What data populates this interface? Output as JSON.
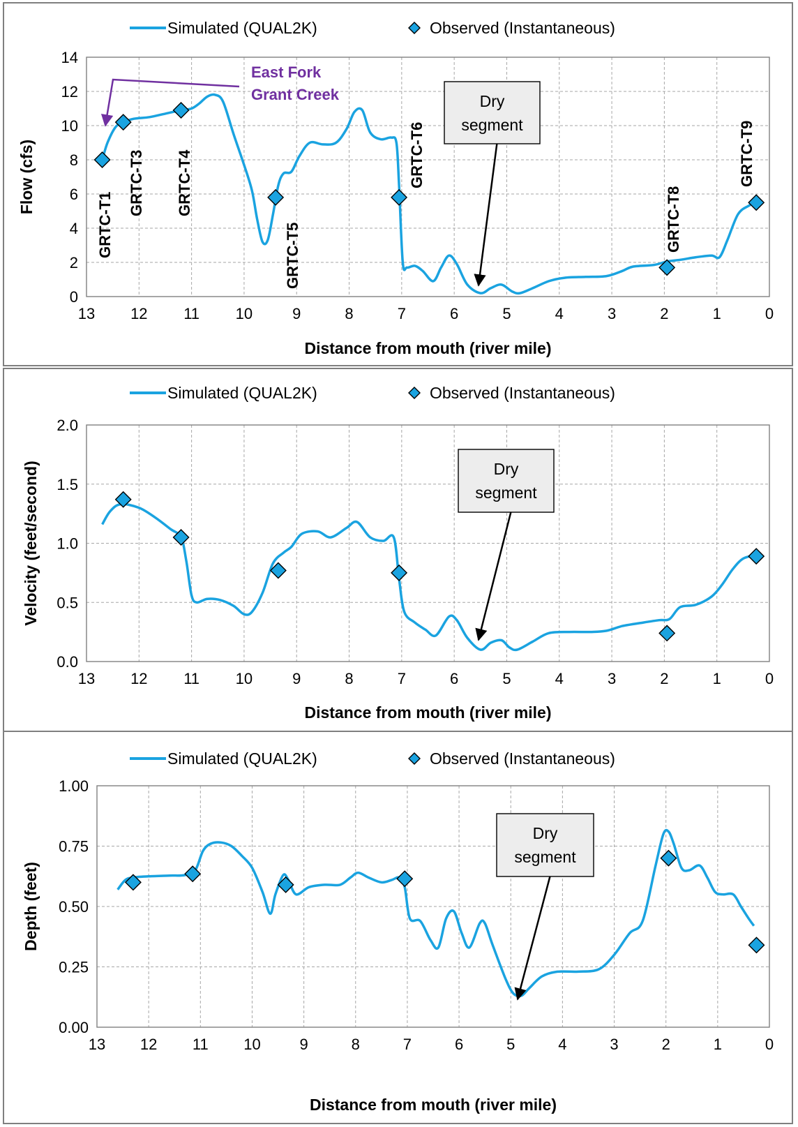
{
  "chart_data": [
    {
      "type": "line",
      "xlabel": "Distance from mouth (river mile)",
      "ylabel": "Flow (cfs)",
      "xlim": [
        13,
        0
      ],
      "ylim": [
        0,
        14
      ],
      "x_ticks": [
        13,
        12,
        11,
        10,
        9,
        8,
        7,
        6,
        5,
        4,
        3,
        2,
        1,
        0
      ],
      "y_ticks": [
        "0",
        "2",
        "4",
        "6",
        "8",
        "10",
        "12",
        "14"
      ],
      "grid": true,
      "legend": {
        "position": "top",
        "entries": [
          "Simulated (QUAL2K)",
          "Observed (Instantaneous)"
        ]
      },
      "series": [
        {
          "name": "Simulated (QUAL2K)",
          "kind": "line",
          "color": "#1aa3e0",
          "points": [
            [
              12.7,
              8.0
            ],
            [
              12.6,
              9.0
            ],
            [
              12.45,
              9.9
            ],
            [
              12.3,
              10.2
            ],
            [
              12.1,
              10.4
            ],
            [
              11.8,
              10.5
            ],
            [
              11.5,
              10.7
            ],
            [
              11.2,
              10.9
            ],
            [
              11.0,
              11.0
            ],
            [
              10.85,
              11.3
            ],
            [
              10.7,
              11.7
            ],
            [
              10.55,
              11.8
            ],
            [
              10.4,
              11.4
            ],
            [
              10.2,
              9.5
            ],
            [
              10.0,
              7.7
            ],
            [
              9.85,
              6.2
            ],
            [
              9.75,
              4.5
            ],
            [
              9.65,
              3.2
            ],
            [
              9.55,
              3.3
            ],
            [
              9.45,
              4.8
            ],
            [
              9.35,
              6.5
            ],
            [
              9.25,
              7.2
            ],
            [
              9.1,
              7.3
            ],
            [
              8.95,
              8.2
            ],
            [
              8.75,
              9.0
            ],
            [
              8.5,
              8.9
            ],
            [
              8.25,
              9.0
            ],
            [
              8.05,
              9.8
            ],
            [
              7.9,
              10.8
            ],
            [
              7.75,
              10.9
            ],
            [
              7.6,
              9.6
            ],
            [
              7.4,
              9.2
            ],
            [
              7.2,
              9.3
            ],
            [
              7.1,
              9.0
            ],
            [
              7.05,
              6.5
            ],
            [
              6.98,
              2.0
            ],
            [
              6.9,
              1.7
            ],
            [
              6.75,
              1.8
            ],
            [
              6.6,
              1.5
            ],
            [
              6.4,
              0.9
            ],
            [
              6.25,
              1.7
            ],
            [
              6.1,
              2.4
            ],
            [
              5.95,
              1.9
            ],
            [
              5.75,
              0.7
            ],
            [
              5.5,
              0.2
            ],
            [
              5.3,
              0.5
            ],
            [
              5.1,
              0.7
            ],
            [
              4.9,
              0.3
            ],
            [
              4.75,
              0.2
            ],
            [
              4.5,
              0.5
            ],
            [
              4.2,
              0.9
            ],
            [
              3.9,
              1.1
            ],
            [
              3.5,
              1.15
            ],
            [
              3.1,
              1.2
            ],
            [
              2.8,
              1.5
            ],
            [
              2.6,
              1.75
            ],
            [
              2.2,
              1.85
            ],
            [
              1.95,
              2.05
            ],
            [
              1.7,
              2.15
            ],
            [
              1.4,
              2.3
            ],
            [
              1.1,
              2.4
            ],
            [
              0.95,
              2.3
            ],
            [
              0.8,
              3.3
            ],
            [
              0.6,
              4.8
            ],
            [
              0.4,
              5.3
            ],
            [
              0.22,
              5.5
            ]
          ]
        },
        {
          "name": "Observed (Instantaneous)",
          "kind": "marker",
          "color": "#1aa3e0",
          "points": [
            [
              12.7,
              8.0
            ],
            [
              12.3,
              10.2
            ],
            [
              11.2,
              10.9
            ],
            [
              9.4,
              5.8
            ],
            [
              7.05,
              5.8
            ],
            [
              1.95,
              1.7
            ],
            [
              0.25,
              5.5
            ]
          ]
        }
      ],
      "annotations": {
        "station_labels": [
          "GRTC-T1",
          "GRTC-T3",
          "GRTC-T4",
          "GRTC-T5",
          "GRTC-T6",
          "GRTC-T8",
          "GRTC-T9"
        ],
        "tributary": {
          "line1": "East Fork",
          "line2": "Grant Creek",
          "color": "#7030a0"
        },
        "callout": {
          "line1": "Dry",
          "line2": "segment"
        }
      }
    },
    {
      "type": "line",
      "xlabel": "Distance from mouth (river mile)",
      "ylabel": "Velocity (feet/second)",
      "xlim": [
        13,
        0
      ],
      "ylim": [
        0,
        2
      ],
      "x_ticks": [
        13,
        12,
        11,
        10,
        9,
        8,
        7,
        6,
        5,
        4,
        3,
        2,
        1,
        0
      ],
      "y_ticks": [
        "0.0",
        "0.5",
        "1.0",
        "1.5",
        "2.0"
      ],
      "grid": true,
      "legend": {
        "position": "top",
        "entries": [
          "Simulated (QUAL2K)",
          "Observed (Instantaneous)"
        ]
      },
      "series": [
        {
          "name": "Simulated (QUAL2K)",
          "kind": "line",
          "color": "#1aa3e0",
          "points": [
            [
              12.7,
              1.16
            ],
            [
              12.55,
              1.27
            ],
            [
              12.35,
              1.33
            ],
            [
              12.0,
              1.3
            ],
            [
              11.7,
              1.22
            ],
            [
              11.4,
              1.12
            ],
            [
              11.2,
              1.05
            ],
            [
              11.1,
              0.85
            ],
            [
              11.0,
              0.56
            ],
            [
              10.9,
              0.5
            ],
            [
              10.7,
              0.53
            ],
            [
              10.45,
              0.52
            ],
            [
              10.2,
              0.47
            ],
            [
              10.0,
              0.4
            ],
            [
              9.85,
              0.42
            ],
            [
              9.65,
              0.58
            ],
            [
              9.45,
              0.83
            ],
            [
              9.25,
              0.92
            ],
            [
              9.1,
              0.97
            ],
            [
              8.9,
              1.08
            ],
            [
              8.6,
              1.1
            ],
            [
              8.35,
              1.05
            ],
            [
              8.05,
              1.13
            ],
            [
              7.85,
              1.18
            ],
            [
              7.6,
              1.05
            ],
            [
              7.35,
              1.02
            ],
            [
              7.15,
              1.05
            ],
            [
              7.05,
              0.7
            ],
            [
              6.95,
              0.42
            ],
            [
              6.75,
              0.33
            ],
            [
              6.55,
              0.27
            ],
            [
              6.35,
              0.22
            ],
            [
              6.1,
              0.38
            ],
            [
              5.95,
              0.35
            ],
            [
              5.75,
              0.2
            ],
            [
              5.5,
              0.1
            ],
            [
              5.3,
              0.16
            ],
            [
              5.1,
              0.18
            ],
            [
              4.95,
              0.12
            ],
            [
              4.8,
              0.1
            ],
            [
              4.5,
              0.17
            ],
            [
              4.2,
              0.24
            ],
            [
              3.8,
              0.25
            ],
            [
              3.4,
              0.25
            ],
            [
              3.1,
              0.26
            ],
            [
              2.8,
              0.3
            ],
            [
              2.4,
              0.33
            ],
            [
              2.1,
              0.35
            ],
            [
              1.9,
              0.36
            ],
            [
              1.7,
              0.46
            ],
            [
              1.4,
              0.48
            ],
            [
              1.1,
              0.55
            ],
            [
              0.9,
              0.65
            ],
            [
              0.7,
              0.78
            ],
            [
              0.5,
              0.87
            ],
            [
              0.25,
              0.9
            ]
          ]
        },
        {
          "name": "Observed (Instantaneous)",
          "kind": "marker",
          "color": "#1aa3e0",
          "points": [
            [
              12.3,
              1.37
            ],
            [
              11.2,
              1.05
            ],
            [
              9.35,
              0.77
            ],
            [
              7.05,
              0.75
            ],
            [
              1.95,
              0.24
            ],
            [
              0.25,
              0.89
            ]
          ]
        }
      ],
      "annotations": {
        "callout": {
          "line1": "Dry",
          "line2": "segment"
        }
      }
    },
    {
      "type": "line",
      "xlabel": "Distance from mouth (river mile)",
      "ylabel": "Depth (feet)",
      "xlim": [
        13,
        0
      ],
      "ylim": [
        0,
        1
      ],
      "x_ticks": [
        13,
        12,
        11,
        10,
        9,
        8,
        7,
        6,
        5,
        4,
        3,
        2,
        1,
        0
      ],
      "y_ticks": [
        "0.00",
        "0.25",
        "0.50",
        "0.75",
        "1.00"
      ],
      "grid": true,
      "legend": {
        "position": "top",
        "entries": [
          "Simulated (QUAL2K)",
          "Observed (Instantaneous)"
        ]
      },
      "series": [
        {
          "name": "Simulated (QUAL2K)",
          "kind": "line",
          "color": "#1aa3e0",
          "points": [
            [
              12.6,
              0.57
            ],
            [
              12.45,
              0.61
            ],
            [
              12.3,
              0.62
            ],
            [
              12.0,
              0.625
            ],
            [
              11.6,
              0.628
            ],
            [
              11.3,
              0.63
            ],
            [
              11.1,
              0.65
            ],
            [
              10.95,
              0.73
            ],
            [
              10.8,
              0.76
            ],
            [
              10.6,
              0.765
            ],
            [
              10.4,
              0.75
            ],
            [
              10.2,
              0.71
            ],
            [
              10.0,
              0.66
            ],
            [
              9.8,
              0.56
            ],
            [
              9.65,
              0.47
            ],
            [
              9.55,
              0.55
            ],
            [
              9.4,
              0.63
            ],
            [
              9.3,
              0.61
            ],
            [
              9.15,
              0.55
            ],
            [
              8.9,
              0.58
            ],
            [
              8.6,
              0.59
            ],
            [
              8.3,
              0.59
            ],
            [
              8.1,
              0.62
            ],
            [
              7.95,
              0.64
            ],
            [
              7.75,
              0.62
            ],
            [
              7.5,
              0.6
            ],
            [
              7.3,
              0.61
            ],
            [
              7.15,
              0.62
            ],
            [
              7.05,
              0.58
            ],
            [
              6.95,
              0.45
            ],
            [
              6.75,
              0.44
            ],
            [
              6.55,
              0.36
            ],
            [
              6.4,
              0.33
            ],
            [
              6.25,
              0.45
            ],
            [
              6.1,
              0.48
            ],
            [
              5.95,
              0.39
            ],
            [
              5.8,
              0.33
            ],
            [
              5.6,
              0.43
            ],
            [
              5.5,
              0.43
            ],
            [
              5.35,
              0.34
            ],
            [
              5.1,
              0.2
            ],
            [
              4.95,
              0.14
            ],
            [
              4.8,
              0.13
            ],
            [
              4.65,
              0.16
            ],
            [
              4.4,
              0.21
            ],
            [
              4.1,
              0.23
            ],
            [
              3.7,
              0.23
            ],
            [
              3.3,
              0.24
            ],
            [
              3.0,
              0.3
            ],
            [
              2.7,
              0.39
            ],
            [
              2.45,
              0.44
            ],
            [
              2.2,
              0.67
            ],
            [
              2.05,
              0.8
            ],
            [
              1.95,
              0.81
            ],
            [
              1.85,
              0.76
            ],
            [
              1.7,
              0.66
            ],
            [
              1.55,
              0.65
            ],
            [
              1.35,
              0.67
            ],
            [
              1.2,
              0.62
            ],
            [
              1.05,
              0.56
            ],
            [
              0.9,
              0.55
            ],
            [
              0.7,
              0.55
            ],
            [
              0.55,
              0.5
            ],
            [
              0.4,
              0.45
            ],
            [
              0.3,
              0.42
            ]
          ]
        },
        {
          "name": "Observed (Instantaneous)",
          "kind": "marker",
          "color": "#1aa3e0",
          "points": [
            [
              12.3,
              0.6
            ],
            [
              11.15,
              0.635
            ],
            [
              9.35,
              0.59
            ],
            [
              7.05,
              0.615
            ],
            [
              1.95,
              0.7
            ],
            [
              0.25,
              0.34
            ]
          ]
        }
      ],
      "annotations": {
        "callout": {
          "line1": "Dry",
          "line2": "segment"
        }
      }
    }
  ]
}
